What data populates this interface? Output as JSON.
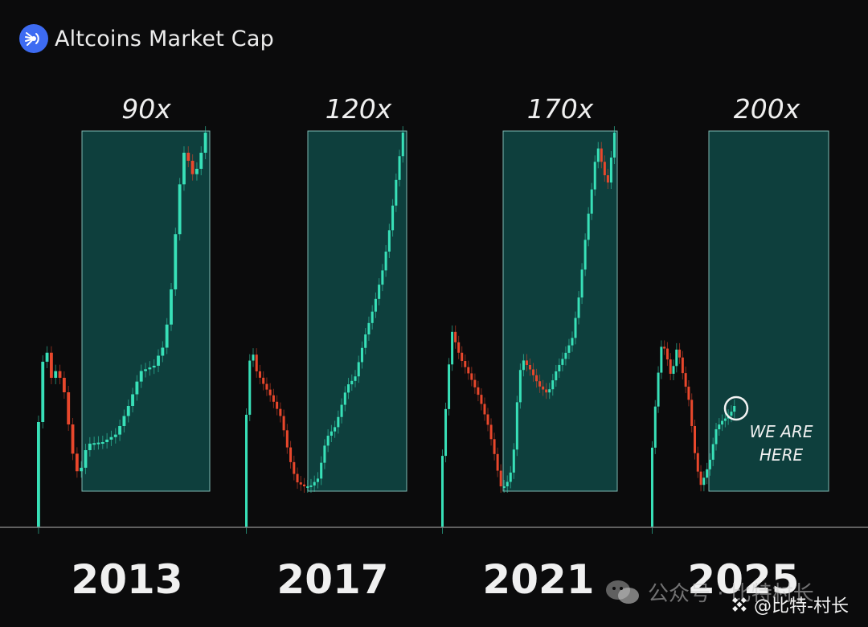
{
  "header": {
    "logo_icon": "altcoins-logo-icon",
    "title": "Altcoins Market Cap"
  },
  "colors": {
    "background": "#0b0b0c",
    "up": "#38e0b8",
    "down": "#e8472c",
    "highlight_fill": "#0f4442",
    "highlight_border": "#7fb8b2",
    "text": "#f0f0f0"
  },
  "chart_data": {
    "type": "candlestick",
    "title": "Altcoins Market Cap",
    "xlabel": "",
    "ylabel": "",
    "y_axis": "relative market cap (unlabeled)",
    "grid": false,
    "legend": "none",
    "categories": [
      "2013",
      "2017",
      "2021",
      "2025"
    ],
    "multiples": [
      "90x",
      "120x",
      "170x",
      "200x"
    ],
    "series": [
      {
        "year": "2013",
        "multiple": "90x",
        "trend": "spike up, correction down to base, then rally to cycle top"
      },
      {
        "year": "2017",
        "multiple": "120x",
        "trend": "spike up, correction down to base, then rally to cycle top"
      },
      {
        "year": "2021",
        "multiple": "170x",
        "trend": "spike up, correction down to base, then rally to cycle top"
      },
      {
        "year": "2025",
        "multiple": "200x",
        "trend": "spike up, correction down to base, early recovery (current position)"
      }
    ],
    "annotation": {
      "text_line1": "WE ARE",
      "text_line2": "HERE",
      "cycle": "2025"
    }
  },
  "watermark": {
    "text": "公众号 · 比特村长"
  },
  "account": {
    "icon": "binance-icon",
    "text": "@比特-村长"
  }
}
